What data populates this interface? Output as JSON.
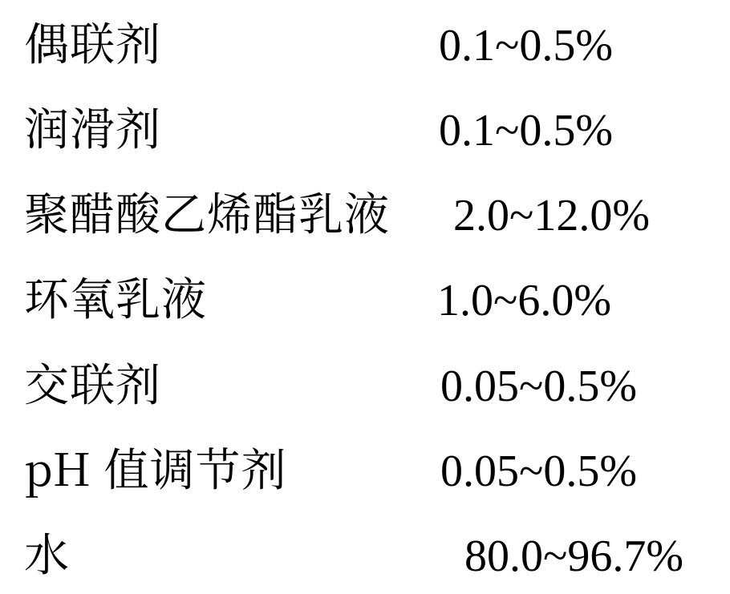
{
  "document": {
    "background_color": "#ffffff",
    "text_color": "#000000",
    "font_family_label": "SimSun / Songti serif",
    "font_family_value": "Times New Roman serif",
    "font_size_pt": 42,
    "rows": [
      {
        "label": "偶联剂",
        "value": "0.1~0.5%"
      },
      {
        "label": "润滑剂",
        "value": "0.1~0.5%"
      },
      {
        "label": "聚醋酸乙烯酯乳液",
        "value": "2.0~12.0%"
      },
      {
        "label": "环氧乳液",
        "value": "1.0~6.0%"
      },
      {
        "label": "交联剂",
        "value": "0.05~0.5%"
      },
      {
        "label": "pH 值调节剂",
        "value": "0.05~0.5%"
      },
      {
        "label": "水",
        "value": "80.0~96.7%"
      }
    ]
  }
}
